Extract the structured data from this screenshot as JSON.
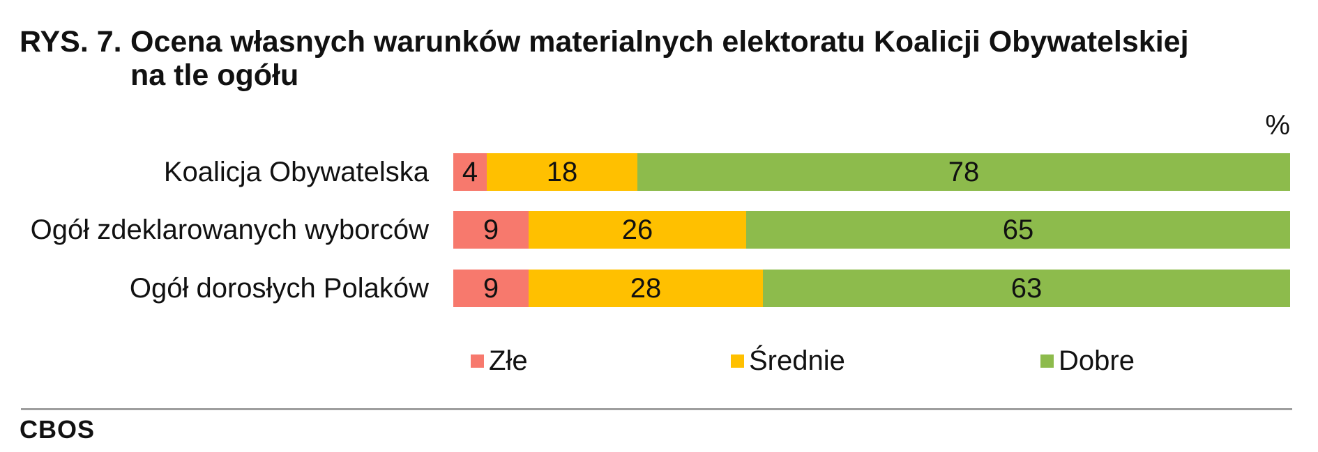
{
  "header": {
    "figure_label": "RYS. 7.",
    "title_line1": "Ocena własnych warunków materialnych elektoratu Koalicji Obywatelskiej",
    "title_line2": "na tle ogółu"
  },
  "chart_data": {
    "type": "bar",
    "orientation": "horizontal_stacked",
    "title": "Ocena własnych warunków materialnych elektoratu Koalicji Obywatelskiej na tle ogółu",
    "unit": "%",
    "xlim": [
      0,
      100
    ],
    "grid": false,
    "value_labels": "inside",
    "legend_position": "bottom",
    "categories": [
      "Koalicja Obywatelska",
      "Ogół zdeklarowanych wyborców",
      "Ogół dorosłych Polaków"
    ],
    "series": [
      {
        "name": "Złe",
        "color": "#F7796D",
        "values": [
          4,
          9,
          9
        ]
      },
      {
        "name": "Średnie",
        "color": "#FFC000",
        "values": [
          18,
          26,
          28
        ]
      },
      {
        "name": "Dobre",
        "color": "#8DBB4C",
        "values": [
          78,
          65,
          63
        ]
      }
    ]
  },
  "footer": {
    "source_label": "CBOS"
  }
}
